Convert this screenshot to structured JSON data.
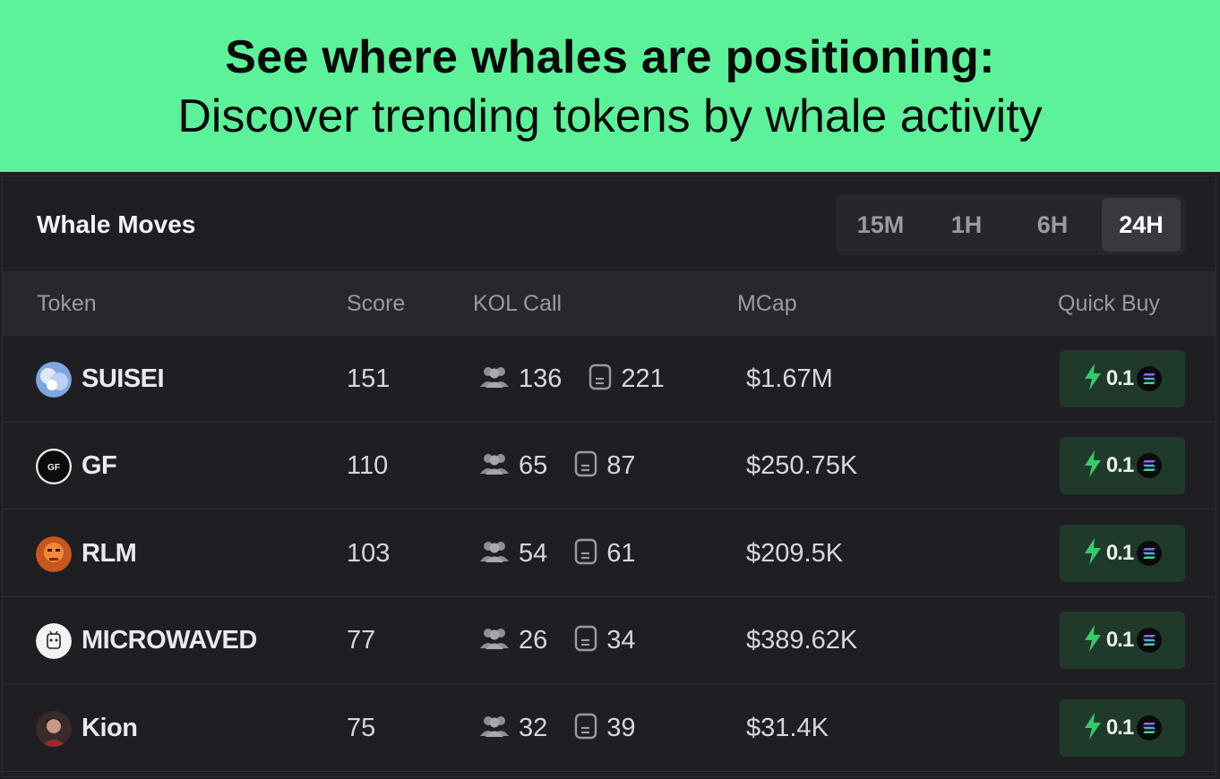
{
  "banner": {
    "headline": "See where whales are positioning:",
    "subheadline": "Discover trending tokens by whale activity"
  },
  "panel": {
    "title": "Whale Moves",
    "timeframes": [
      "15M",
      "1H",
      "6H",
      "24H"
    ],
    "active_timeframe": "24H",
    "columns": {
      "token": "Token",
      "score": "Score",
      "kol_call": "KOL Call",
      "mcap": "MCap",
      "quick_buy": "Quick Buy"
    },
    "rows": [
      {
        "symbol": "SUISEI",
        "score": "151",
        "kol_users": "136",
        "kol_calls": "221",
        "mcap": "$1.67M",
        "buy_amount": "0.1",
        "avatar_icon": "suisei-avatar-icon"
      },
      {
        "symbol": "GF",
        "score": "110",
        "kol_users": "65",
        "kol_calls": "87",
        "mcap": "$250.75K",
        "buy_amount": "0.1",
        "avatar_icon": "gf-avatar-icon",
        "avatar_text": "GF"
      },
      {
        "symbol": "RLM",
        "score": "103",
        "kol_users": "54",
        "kol_calls": "61",
        "mcap": "$209.5K",
        "buy_amount": "0.1",
        "avatar_icon": "rlm-avatar-icon"
      },
      {
        "symbol": "MICROWAVED",
        "score": "77",
        "kol_users": "26",
        "kol_calls": "34",
        "mcap": "$389.62K",
        "buy_amount": "0.1",
        "avatar_icon": "microwaved-avatar-icon"
      },
      {
        "symbol": "Kion",
        "score": "75",
        "kol_users": "32",
        "kol_calls": "39",
        "mcap": "$31.4K",
        "buy_amount": "0.1",
        "avatar_icon": "kion-avatar-icon"
      }
    ]
  },
  "colors": {
    "banner_bg": "#5cf29a",
    "panel_bg": "#1f1f23",
    "quick_buy_bg": "#1f3a2a",
    "bolt_green": "#35c96a"
  }
}
